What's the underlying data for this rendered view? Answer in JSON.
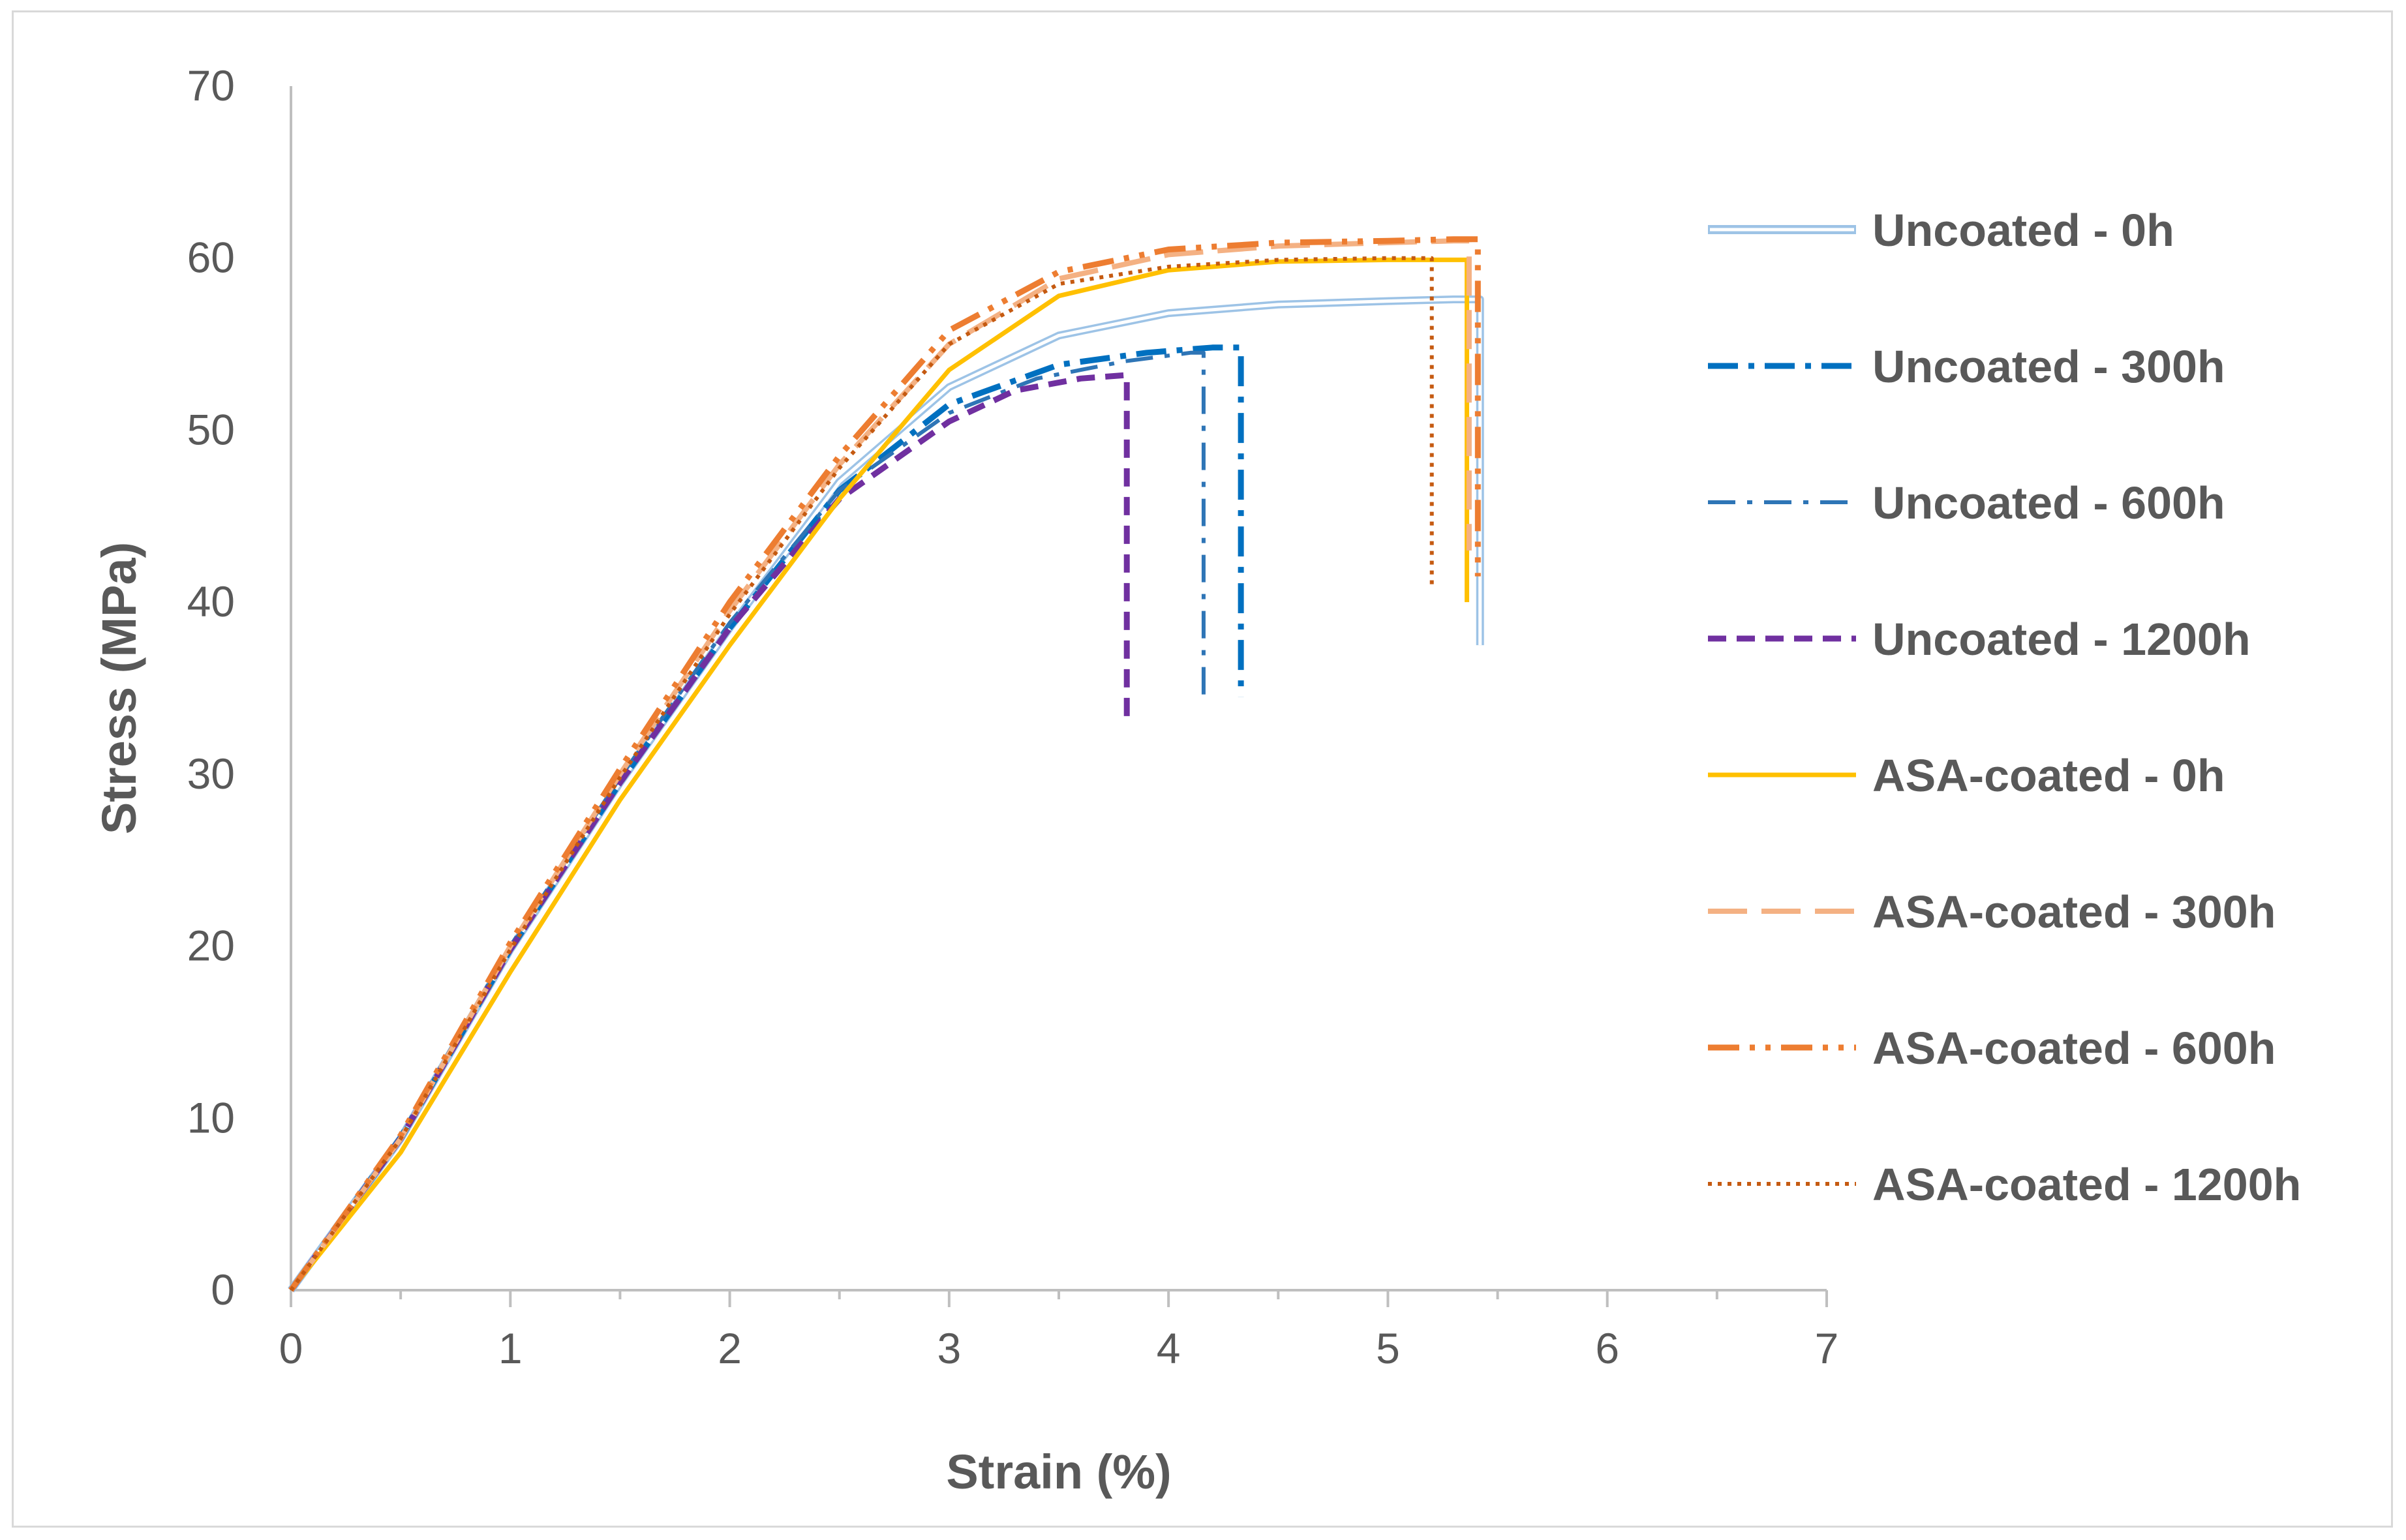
{
  "chart_data": {
    "type": "line",
    "title": "",
    "xlabel": "Strain (%)",
    "ylabel": "Stress (MPa)",
    "xlim": [
      0,
      7
    ],
    "ylim": [
      0,
      70
    ],
    "xticks": [
      "0",
      "1",
      "2",
      "3",
      "4",
      "5",
      "6",
      "7"
    ],
    "yticks": [
      "0",
      "10",
      "20",
      "30",
      "40",
      "50",
      "60",
      "70"
    ],
    "grid": false,
    "legend_position": "right",
    "series": [
      {
        "name": "Uncoated - 0h",
        "color": "#9dc3e6",
        "style": "double",
        "x": [
          0,
          0.5,
          1.0,
          1.5,
          2.0,
          2.5,
          3.0,
          3.5,
          4.0,
          4.5,
          5.0,
          5.3,
          5.42,
          5.42
        ],
        "y": [
          0,
          8.8,
          19.8,
          29.5,
          38.5,
          47.0,
          52.5,
          55.5,
          56.8,
          57.3,
          57.5,
          57.6,
          57.6,
          37.5
        ]
      },
      {
        "name": "Uncoated - 300h",
        "color": "#0070c0",
        "style": "dashdot",
        "x": [
          0,
          0.5,
          1.0,
          1.5,
          2.0,
          2.5,
          3.0,
          3.5,
          3.9,
          4.2,
          4.33,
          4.33
        ],
        "y": [
          0,
          8.8,
          19.8,
          29.5,
          38.5,
          46.5,
          51.5,
          53.8,
          54.5,
          54.8,
          54.8,
          34.5
        ]
      },
      {
        "name": "Uncoated - 600h",
        "color": "#2e75b6",
        "style": "dashdot2",
        "x": [
          0,
          0.5,
          1.0,
          1.5,
          2.0,
          2.5,
          3.0,
          3.4,
          3.8,
          4.1,
          4.16,
          4.16
        ],
        "y": [
          0,
          9.0,
          20.0,
          29.8,
          38.8,
          46.5,
          51.0,
          53.0,
          54.0,
          54.5,
          54.5,
          34.5
        ]
      },
      {
        "name": "Uncoated - 1200h",
        "color": "#7030a0",
        "style": "dash",
        "x": [
          0,
          0.5,
          1.0,
          1.5,
          2.0,
          2.5,
          3.0,
          3.3,
          3.6,
          3.81,
          3.81
        ],
        "y": [
          0,
          8.8,
          19.8,
          29.5,
          38.5,
          46.0,
          50.5,
          52.3,
          53.0,
          53.2,
          33.0
        ]
      },
      {
        "name": "ASA-coated - 0h",
        "color": "#ffc000",
        "style": "solid",
        "x": [
          0,
          0.5,
          1.0,
          1.5,
          2.0,
          2.5,
          3.0,
          3.5,
          4.0,
          4.5,
          5.0,
          5.3,
          5.36,
          5.36
        ],
        "y": [
          0,
          8.0,
          18.5,
          28.5,
          37.5,
          46.0,
          53.5,
          57.8,
          59.3,
          59.8,
          59.9,
          59.9,
          59.9,
          40.0
        ]
      },
      {
        "name": "ASA-coated - 300h",
        "color": "#f4b183",
        "style": "longdash",
        "x": [
          0,
          0.5,
          1.0,
          1.5,
          2.0,
          2.5,
          3.0,
          3.5,
          4.0,
          4.5,
          5.0,
          5.3,
          5.37,
          5.37
        ],
        "y": [
          0,
          8.8,
          20.0,
          30.0,
          39.5,
          48.0,
          55.0,
          58.8,
          60.2,
          60.7,
          60.9,
          61.0,
          61.0,
          43.0
        ]
      },
      {
        "name": "ASA-coated - 600h",
        "color": "#ed7d31",
        "style": "dashdotdot",
        "x": [
          0,
          0.5,
          1.0,
          1.5,
          2.0,
          2.5,
          3.0,
          3.5,
          4.0,
          4.5,
          5.0,
          5.3,
          5.41,
          5.41
        ],
        "y": [
          0,
          9.0,
          20.2,
          30.3,
          40.0,
          48.5,
          55.8,
          59.2,
          60.5,
          60.9,
          61.0,
          61.1,
          61.1,
          41.5
        ]
      },
      {
        "name": "ASA-coated - 1200h",
        "color": "#c55a11",
        "style": "dot",
        "x": [
          0,
          0.5,
          1.0,
          1.5,
          2.0,
          2.5,
          3.0,
          3.5,
          4.0,
          4.5,
          5.0,
          5.2,
          5.2
        ],
        "y": [
          0,
          8.8,
          19.8,
          29.8,
          39.3,
          47.8,
          55.0,
          58.5,
          59.5,
          59.9,
          60.0,
          60.0,
          41.0
        ]
      }
    ]
  }
}
